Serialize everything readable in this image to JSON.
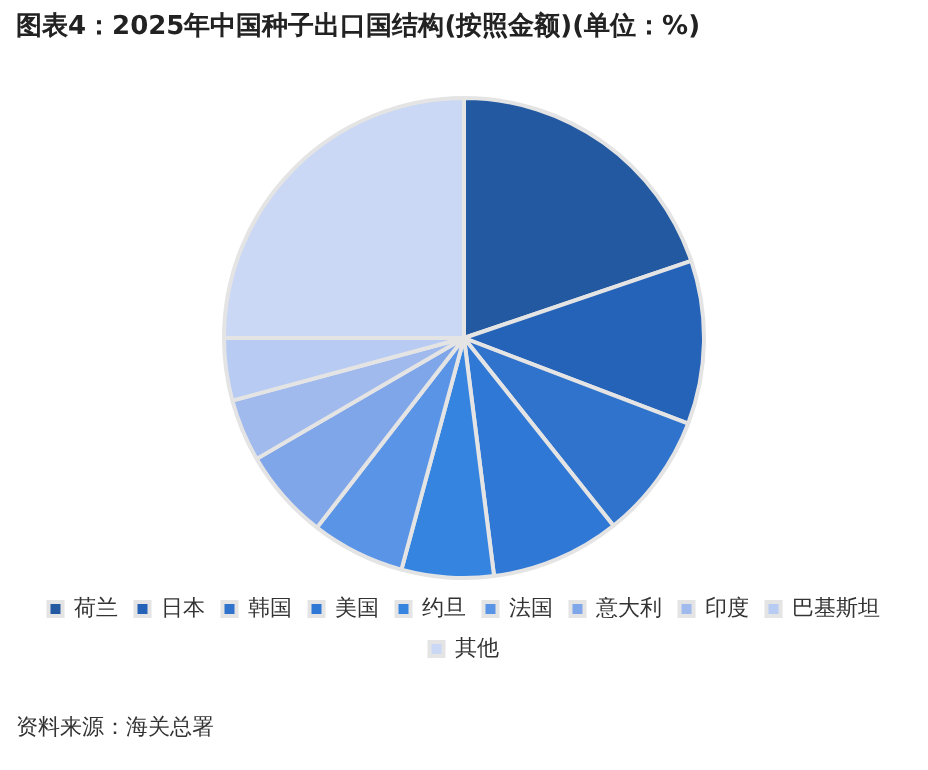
{
  "chart_data": {
    "type": "pie",
    "title": "图表4：2025年中国种子出口国结构(按照金额)(单位：%)",
    "categories": [
      "荷兰",
      "日本",
      "韩国",
      "美国",
      "约旦",
      "法国",
      "意大利",
      "印度",
      "巴基斯坦",
      "其他"
    ],
    "values": [
      19.8,
      11.0,
      8.5,
      8.7,
      6.2,
      6.3,
      6.1,
      4.2,
      4.2,
      25.0
    ],
    "colors": [
      "#2259a0",
      "#2563b8",
      "#2f73cc",
      "#2f78d6",
      "#3584e0",
      "#5a94e6",
      "#80a6ea",
      "#a0baee",
      "#b8cbf2",
      "#cad8f5"
    ],
    "legend": "bottom",
    "annotations": [
      "资料来源：海关总署"
    ]
  }
}
